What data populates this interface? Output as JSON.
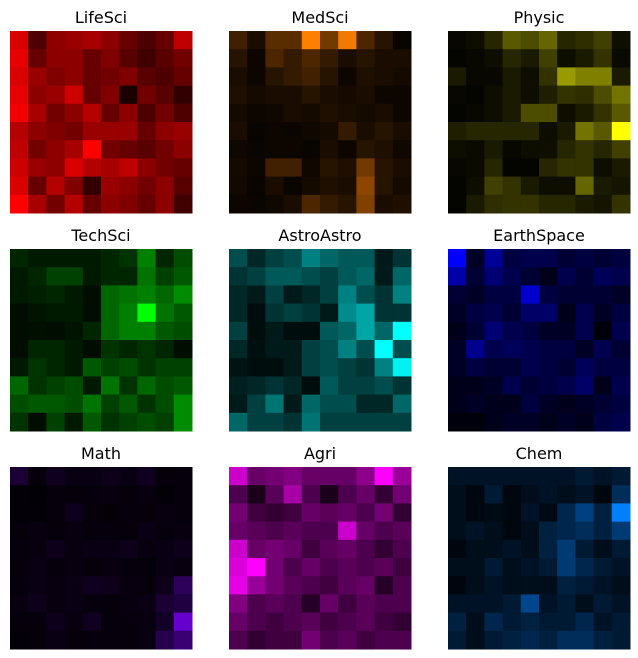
{
  "chart_data": [
    {
      "type": "heatmap",
      "title": "LifeSci",
      "color": "#ff0000",
      "grid": false,
      "values": [
        [
          0.85,
          0.3,
          0.55,
          0.6,
          0.65,
          0.55,
          0.4,
          0.3,
          0.4,
          0.75
        ],
        [
          0.9,
          0.4,
          0.55,
          0.55,
          0.4,
          0.5,
          0.35,
          0.25,
          0.35,
          0.45
        ],
        [
          0.85,
          0.6,
          0.5,
          0.55,
          0.4,
          0.45,
          0.5,
          0.35,
          0.3,
          0.4
        ],
        [
          0.9,
          0.55,
          0.6,
          0.8,
          0.4,
          0.5,
          0.1,
          0.45,
          0.35,
          0.2
        ],
        [
          0.95,
          0.65,
          0.45,
          0.55,
          0.7,
          0.4,
          0.55,
          0.3,
          0.45,
          0.3
        ],
        [
          0.7,
          0.55,
          0.5,
          0.45,
          0.6,
          0.6,
          0.6,
          0.4,
          0.55,
          0.6
        ],
        [
          0.75,
          0.45,
          0.55,
          0.65,
          1.0,
          0.45,
          0.4,
          0.35,
          0.45,
          0.55
        ],
        [
          0.8,
          0.6,
          0.55,
          0.85,
          0.7,
          0.65,
          0.75,
          0.55,
          0.45,
          0.4
        ],
        [
          0.85,
          0.4,
          0.7,
          0.5,
          0.2,
          0.6,
          0.55,
          0.45,
          0.55,
          0.35
        ],
        [
          1.0,
          0.65,
          0.45,
          0.7,
          0.4,
          0.55,
          0.5,
          0.4,
          0.55,
          0.25
        ]
      ]
    },
    {
      "type": "heatmap",
      "title": "MedSci",
      "color": "#ff8000",
      "grid": false,
      "values": [
        [
          0.25,
          0.1,
          0.35,
          0.35,
          1.0,
          0.45,
          0.95,
          0.3,
          0.15,
          0.03
        ],
        [
          0.15,
          0.05,
          0.3,
          0.2,
          0.3,
          0.2,
          0.1,
          0.15,
          0.1,
          0.1
        ],
        [
          0.1,
          0.05,
          0.15,
          0.2,
          0.25,
          0.15,
          0.05,
          0.12,
          0.1,
          0.08
        ],
        [
          0.12,
          0.08,
          0.1,
          0.1,
          0.15,
          0.1,
          0.08,
          0.1,
          0.05,
          0.05
        ],
        [
          0.08,
          0.05,
          0.06,
          0.1,
          0.08,
          0.12,
          0.1,
          0.08,
          0.1,
          0.05
        ],
        [
          0.1,
          0.03,
          0.05,
          0.04,
          0.06,
          0.08,
          0.2,
          0.1,
          0.15,
          0.1
        ],
        [
          0.06,
          0.04,
          0.05,
          0.05,
          0.03,
          0.1,
          0.05,
          0.15,
          0.12,
          0.06
        ],
        [
          0.08,
          0.05,
          0.25,
          0.25,
          0.06,
          0.15,
          0.12,
          0.45,
          0.15,
          0.1
        ],
        [
          0.07,
          0.03,
          0.1,
          0.04,
          0.08,
          0.12,
          0.1,
          0.55,
          0.15,
          0.08
        ],
        [
          0.05,
          0.04,
          0.06,
          0.1,
          0.3,
          0.2,
          0.15,
          0.5,
          0.1,
          0.12
        ]
      ]
    },
    {
      "type": "heatmap",
      "title": "Physic",
      "color": "#ffff00",
      "grid": false,
      "values": [
        [
          0.03,
          0.05,
          0.15,
          0.35,
          0.3,
          0.4,
          0.15,
          0.18,
          0.25,
          0.06
        ],
        [
          0.02,
          0.03,
          0.05,
          0.15,
          0.1,
          0.25,
          0.05,
          0.1,
          0.2,
          0.04
        ],
        [
          0.1,
          0.03,
          0.03,
          0.1,
          0.05,
          0.2,
          0.6,
          0.5,
          0.5,
          0.1
        ],
        [
          0.03,
          0.02,
          0.05,
          0.1,
          0.05,
          0.12,
          0.2,
          0.18,
          0.3,
          0.45
        ],
        [
          0.02,
          0.03,
          0.05,
          0.1,
          0.3,
          0.3,
          0.05,
          0.1,
          0.2,
          0.35
        ],
        [
          0.12,
          0.15,
          0.15,
          0.15,
          0.15,
          0.05,
          0.1,
          0.45,
          0.35,
          1.0
        ],
        [
          0.05,
          0.04,
          0.1,
          0.03,
          0.05,
          0.06,
          0.15,
          0.2,
          0.15,
          0.25
        ],
        [
          0.03,
          0.04,
          0.15,
          0.02,
          0.02,
          0.15,
          0.2,
          0.2,
          0.05,
          0.1
        ],
        [
          0.02,
          0.05,
          0.25,
          0.2,
          0.1,
          0.05,
          0.05,
          0.4,
          0.1,
          0.08
        ],
        [
          0.02,
          0.1,
          0.18,
          0.2,
          0.2,
          0.15,
          0.15,
          0.1,
          0.08,
          0.2
        ]
      ]
    },
    {
      "type": "heatmap",
      "title": "TechSci",
      "color": "#00ff00",
      "grid": false,
      "values": [
        [
          0.15,
          0.1,
          0.1,
          0.1,
          0.1,
          0.15,
          0.2,
          0.5,
          0.15,
          0.3
        ],
        [
          0.1,
          0.15,
          0.25,
          0.25,
          0.1,
          0.15,
          0.15,
          0.45,
          0.25,
          0.35
        ],
        [
          0.1,
          0.12,
          0.15,
          0.1,
          0.05,
          0.4,
          0.45,
          0.5,
          0.4,
          0.55
        ],
        [
          0.05,
          0.08,
          0.1,
          0.1,
          0.05,
          0.4,
          0.5,
          1.0,
          0.45,
          0.35
        ],
        [
          0.05,
          0.06,
          0.05,
          0.08,
          0.15,
          0.4,
          0.5,
          0.5,
          0.35,
          0.3
        ],
        [
          0.05,
          0.15,
          0.15,
          0.1,
          0.05,
          0.2,
          0.15,
          0.2,
          0.15,
          0.05
        ],
        [
          0.1,
          0.2,
          0.15,
          0.1,
          0.35,
          0.25,
          0.3,
          0.2,
          0.25,
          0.25
        ],
        [
          0.4,
          0.2,
          0.25,
          0.3,
          0.1,
          0.45,
          0.2,
          0.4,
          0.3,
          0.35
        ],
        [
          0.3,
          0.35,
          0.35,
          0.3,
          0.45,
          0.25,
          0.35,
          0.2,
          0.3,
          0.55
        ],
        [
          0.2,
          0.05,
          0.25,
          0.1,
          0.35,
          0.2,
          0.25,
          0.3,
          0.25,
          0.55
        ]
      ]
    },
    {
      "type": "heatmap",
      "title": "AstroAstro",
      "color": "#00ffff",
      "grid": false,
      "values": [
        [
          0.3,
          0.15,
          0.25,
          0.3,
          0.5,
          0.4,
          0.35,
          0.35,
          0.1,
          0.2
        ],
        [
          0.2,
          0.25,
          0.35,
          0.35,
          0.3,
          0.25,
          0.35,
          0.4,
          0.1,
          0.4
        ],
        [
          0.15,
          0.1,
          0.25,
          0.1,
          0.15,
          0.25,
          0.5,
          0.3,
          0.2,
          0.5
        ],
        [
          0.15,
          0.05,
          0.2,
          0.25,
          0.2,
          0.1,
          0.55,
          0.65,
          0.2,
          0.2
        ],
        [
          0.25,
          0.05,
          0.1,
          0.05,
          0.05,
          0.35,
          0.4,
          0.65,
          0.4,
          1.0
        ],
        [
          0.15,
          0.06,
          0.1,
          0.1,
          0.25,
          0.3,
          0.5,
          0.3,
          1.0,
          0.3
        ],
        [
          0.08,
          0.05,
          0.05,
          0.1,
          0.25,
          0.3,
          0.25,
          0.2,
          0.5,
          0.95
        ],
        [
          0.12,
          0.15,
          0.2,
          0.15,
          0.05,
          0.35,
          0.25,
          0.25,
          0.3,
          0.2
        ],
        [
          0.1,
          0.25,
          0.45,
          0.1,
          0.4,
          0.3,
          0.3,
          0.15,
          0.15,
          0.4
        ],
        [
          0.4,
          0.25,
          0.25,
          0.2,
          0.45,
          0.25,
          0.25,
          0.25,
          0.25,
          0.25
        ]
      ]
    },
    {
      "type": "heatmap",
      "title": "EarthSpace",
      "color": "#0000ff",
      "grid": false,
      "values": [
        [
          1.0,
          0.15,
          0.6,
          0.25,
          0.3,
          0.3,
          0.2,
          0.25,
          0.2,
          0.25
        ],
        [
          0.65,
          0.2,
          0.45,
          0.3,
          0.2,
          0.1,
          0.3,
          0.2,
          0.35,
          0.3
        ],
        [
          0.2,
          0.15,
          0.25,
          0.25,
          0.8,
          0.25,
          0.2,
          0.2,
          0.2,
          0.15
        ],
        [
          0.15,
          0.25,
          0.3,
          0.2,
          0.4,
          0.4,
          0.1,
          0.3,
          0.15,
          0.25
        ],
        [
          0.1,
          0.2,
          0.45,
          0.3,
          0.25,
          0.15,
          0.15,
          0.3,
          0.05,
          0.3
        ],
        [
          0.15,
          0.55,
          0.3,
          0.35,
          0.3,
          0.25,
          0.25,
          0.15,
          0.3,
          0.2
        ],
        [
          0.15,
          0.25,
          0.2,
          0.2,
          0.3,
          0.25,
          0.2,
          0.35,
          0.25,
          0.25
        ],
        [
          0.1,
          0.1,
          0.15,
          0.3,
          0.2,
          0.25,
          0.3,
          0.4,
          0.1,
          0.3
        ],
        [
          0.1,
          0.15,
          0.1,
          0.1,
          0.25,
          0.15,
          0.1,
          0.15,
          0.2,
          0.25
        ],
        [
          0.05,
          0.05,
          0.1,
          0.15,
          0.15,
          0.1,
          0.15,
          0.1,
          0.25,
          0.3
        ]
      ]
    },
    {
      "type": "heatmap",
      "title": "Math",
      "color": "#8000ff",
      "grid": false,
      "values": [
        [
          0.2,
          0.05,
          0.12,
          0.08,
          0.08,
          0.1,
          0.08,
          0.12,
          0.04,
          0.05
        ],
        [
          0.03,
          0.02,
          0.05,
          0.04,
          0.05,
          0.06,
          0.04,
          0.06,
          0.03,
          0.05
        ],
        [
          0.03,
          0.03,
          0.04,
          0.1,
          0.04,
          0.03,
          0.05,
          0.04,
          0.06,
          0.05
        ],
        [
          0.04,
          0.06,
          0.04,
          0.06,
          0.04,
          0.05,
          0.04,
          0.08,
          0.05,
          0.06
        ],
        [
          0.05,
          0.06,
          0.1,
          0.06,
          0.08,
          0.08,
          0.1,
          0.06,
          0.08,
          0.1
        ],
        [
          0.04,
          0.08,
          0.05,
          0.06,
          0.04,
          0.06,
          0.05,
          0.03,
          0.08,
          0.06
        ],
        [
          0.05,
          0.08,
          0.06,
          0.08,
          0.12,
          0.1,
          0.06,
          0.05,
          0.1,
          0.35
        ],
        [
          0.06,
          0.1,
          0.06,
          0.08,
          0.05,
          0.04,
          0.06,
          0.08,
          0.2,
          0.25
        ],
        [
          0.04,
          0.05,
          0.1,
          0.06,
          0.12,
          0.04,
          0.05,
          0.06,
          0.15,
          0.8
        ],
        [
          0.03,
          0.04,
          0.08,
          0.04,
          0.05,
          0.05,
          0.04,
          0.06,
          0.3,
          0.45
        ]
      ]
    },
    {
      "type": "heatmap",
      "title": "Agri",
      "color": "#ff00ff",
      "grid": false,
      "values": [
        [
          0.8,
          0.4,
          0.45,
          0.5,
          0.4,
          0.4,
          0.4,
          0.55,
          1.0,
          0.6
        ],
        [
          0.3,
          0.1,
          0.35,
          0.65,
          0.3,
          0.1,
          0.3,
          0.4,
          0.2,
          0.45
        ],
        [
          0.45,
          0.25,
          0.2,
          0.25,
          0.4,
          0.35,
          0.4,
          0.3,
          0.45,
          0.2
        ],
        [
          0.4,
          0.35,
          0.3,
          0.35,
          0.3,
          0.3,
          0.8,
          0.4,
          0.3,
          0.35
        ],
        [
          0.8,
          0.4,
          0.45,
          0.4,
          0.25,
          0.35,
          0.4,
          0.3,
          0.2,
          0.3
        ],
        [
          0.85,
          1.0,
          0.45,
          0.3,
          0.4,
          0.3,
          0.35,
          0.3,
          0.35,
          0.25
        ],
        [
          0.9,
          0.6,
          0.45,
          0.35,
          0.3,
          0.25,
          0.35,
          0.4,
          0.15,
          0.3
        ],
        [
          0.5,
          0.3,
          0.35,
          0.3,
          0.15,
          0.4,
          0.25,
          0.35,
          0.3,
          0.3
        ],
        [
          0.4,
          0.3,
          0.25,
          0.3,
          0.35,
          0.25,
          0.3,
          0.35,
          0.25,
          0.2
        ],
        [
          0.3,
          0.2,
          0.25,
          0.25,
          0.45,
          0.3,
          0.35,
          0.25,
          0.3,
          0.3
        ]
      ]
    },
    {
      "type": "heatmap",
      "title": "Chem",
      "color": "#0080ff",
      "grid": false,
      "values": [
        [
          0.15,
          0.15,
          0.15,
          0.15,
          0.15,
          0.15,
          0.15,
          0.2,
          0.15,
          0.2
        ],
        [
          0.1,
          0.05,
          0.2,
          0.05,
          0.1,
          0.15,
          0.1,
          0.15,
          0.05,
          0.35
        ],
        [
          0.1,
          0.05,
          0.08,
          0.05,
          0.15,
          0.08,
          0.3,
          0.5,
          0.25,
          1.0
        ],
        [
          0.1,
          0.15,
          0.1,
          0.05,
          0.1,
          0.25,
          0.3,
          0.35,
          0.25,
          0.45
        ],
        [
          0.05,
          0.1,
          0.1,
          0.15,
          0.1,
          0.25,
          0.45,
          0.2,
          0.1,
          0.2
        ],
        [
          0.1,
          0.1,
          0.2,
          0.1,
          0.15,
          0.2,
          0.45,
          0.3,
          0.2,
          0.15
        ],
        [
          0.05,
          0.1,
          0.15,
          0.1,
          0.1,
          0.1,
          0.25,
          0.2,
          0.15,
          0.1
        ],
        [
          0.15,
          0.15,
          0.15,
          0.2,
          0.55,
          0.15,
          0.2,
          0.1,
          0.2,
          0.15
        ],
        [
          0.25,
          0.1,
          0.3,
          0.2,
          0.25,
          0.2,
          0.2,
          0.3,
          0.15,
          0.2
        ],
        [
          0.2,
          0.1,
          0.2,
          0.25,
          0.3,
          0.25,
          0.35,
          0.35,
          0.25,
          0.2
        ]
      ]
    }
  ]
}
